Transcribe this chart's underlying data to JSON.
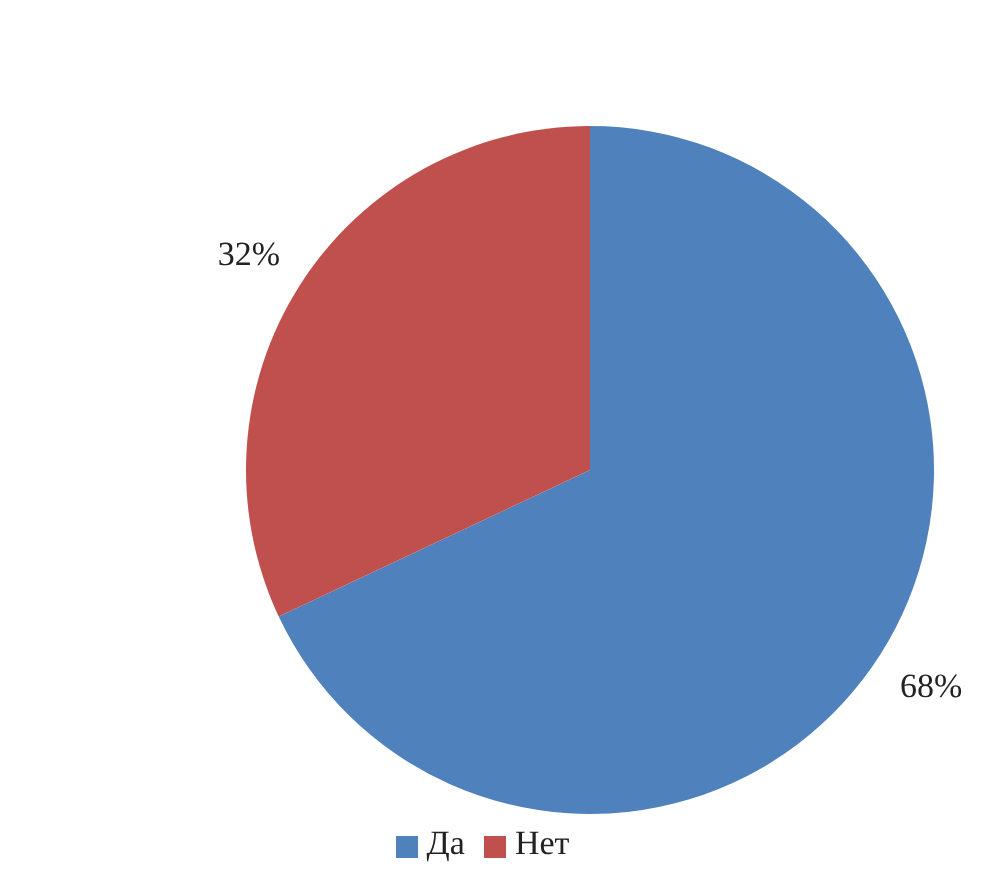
{
  "chart_data": {
    "type": "pie",
    "categories": [
      "Да",
      "Нет"
    ],
    "values": [
      68,
      32
    ],
    "colors": [
      "#4f81bd",
      "#c0504d"
    ],
    "value_labels": [
      "68%",
      "32%"
    ],
    "legend": "bottom"
  }
}
